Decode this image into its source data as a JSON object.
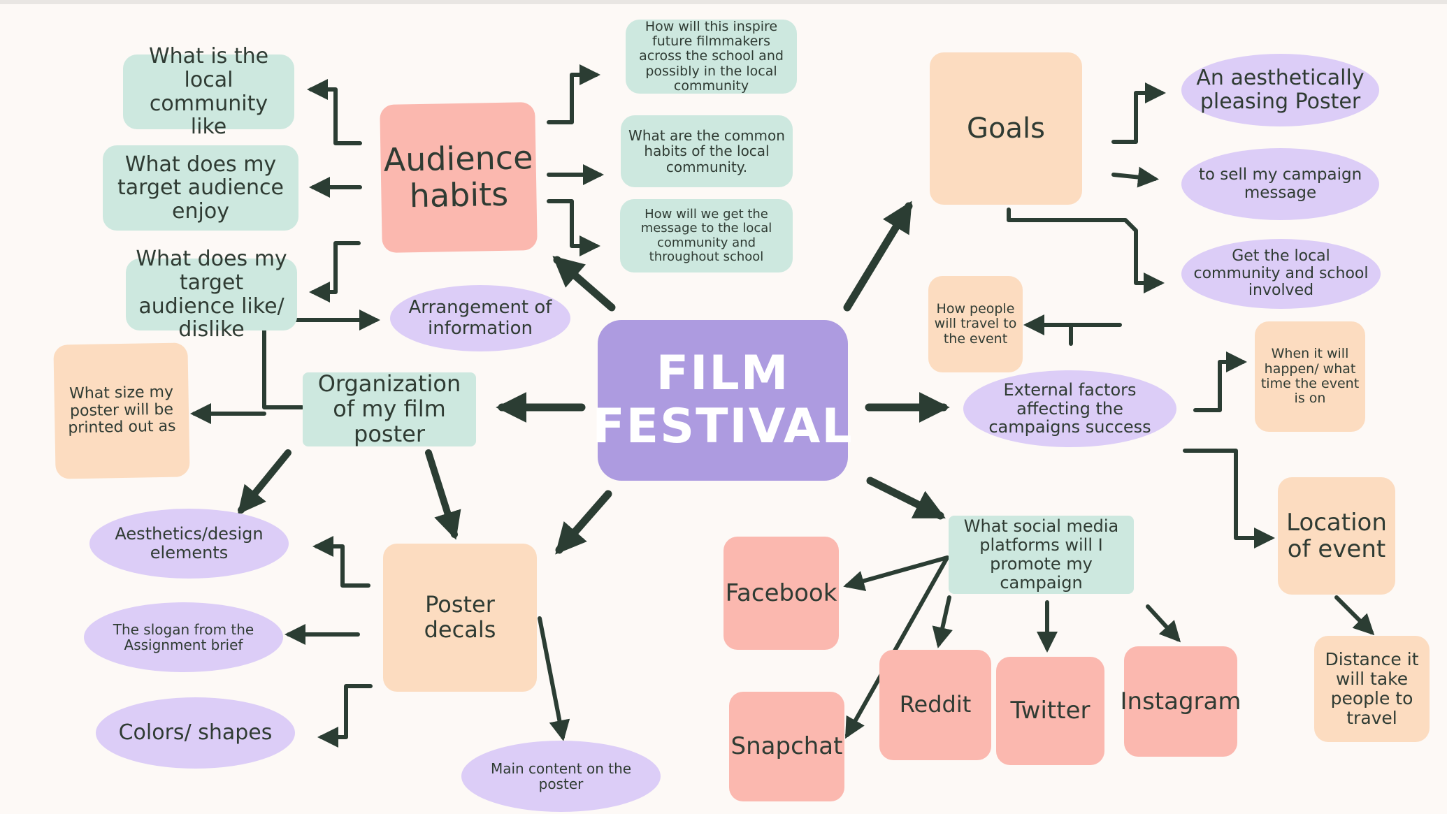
{
  "center": {
    "label": "FILM\nFESTIVAL"
  },
  "audience": {
    "hub": "Audience habits",
    "left": [
      "What is the local community like",
      "What does my target audience enjoy",
      "What does my target audience like/ dislike"
    ],
    "right": [
      "How will this inspire future filmmakers across the school and possibly in the local community",
      "What are the common habits of the local community.",
      "How will we get the message to the local community and throughout school"
    ]
  },
  "goals": {
    "hub": "Goals",
    "items": [
      "An aesthetically pleasing  Poster",
      "to sell my campaign message",
      "Get the local community and school involved"
    ]
  },
  "organization": {
    "hub": "Organization of my film poster",
    "arrangement": "Arrangement of information",
    "size": "What size my poster will be printed out as",
    "aesthetics": "Aesthetics/design elements"
  },
  "decals": {
    "hub": "Poster decals",
    "slogan": "The slogan from the Assignment brief",
    "colors": "Colors/ shapes",
    "main_content": "Main content on the poster"
  },
  "external": {
    "hub": "External factors affecting the campaigns success",
    "travel": "How people will travel to the event",
    "when": "When it will happen/ what time the event is on",
    "location": "Location of event",
    "distance": "Distance it will take people to travel"
  },
  "social": {
    "hub": "What social media platforms will I promote my campaign",
    "platforms": [
      "Facebook",
      "Snapchat",
      "Reddit",
      "Twitter",
      "Instagram"
    ]
  },
  "colors": {
    "teal": "#cde8df",
    "pink": "#fbb8af",
    "peach": "#fcdcc0",
    "lilac": "#dccdf7",
    "purple": "#ad9be0",
    "ink": "#2b3d33"
  }
}
